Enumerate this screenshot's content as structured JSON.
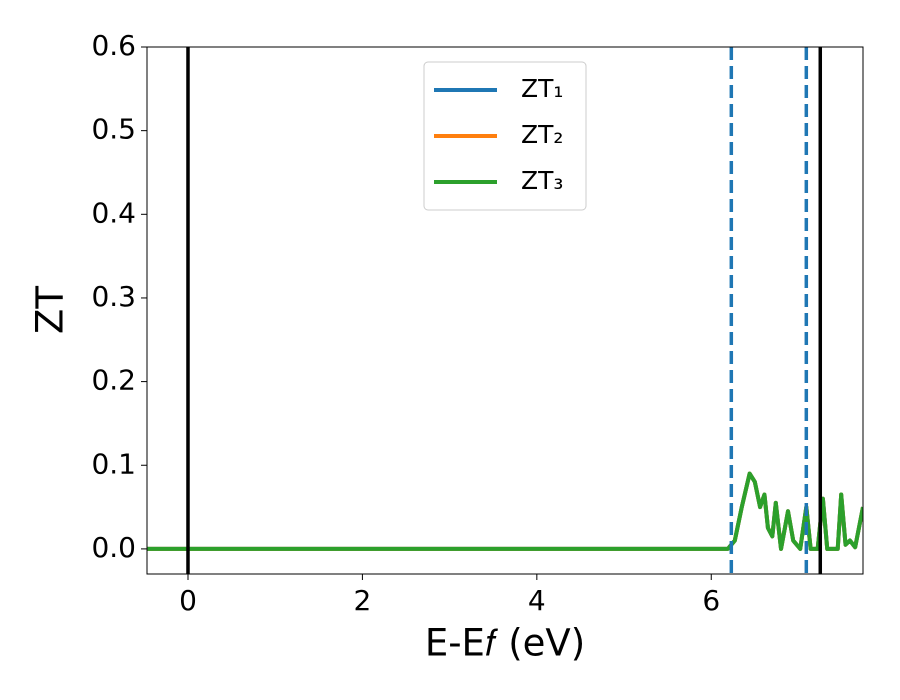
{
  "chart_data": {
    "type": "line",
    "xlabel": "E-E𝑓 (eV)",
    "ylabel": "ZT",
    "x": [
      -0.47,
      6.19,
      6.27,
      6.35,
      6.44,
      6.5,
      6.56,
      6.61,
      6.65,
      6.7,
      6.74,
      6.8,
      6.88,
      6.94,
      7.02,
      7.09,
      7.14,
      7.22,
      7.28,
      7.33,
      7.45,
      7.49,
      7.54,
      7.59,
      7.65,
      7.74
    ],
    "series": [
      {
        "name": "ZT₁",
        "color": "#1f77b4",
        "values": [
          0,
          0,
          0.01,
          0.05,
          0.09,
          0.08,
          0.05,
          0.065,
          0.025,
          0.015,
          0.055,
          0,
          0.045,
          0.01,
          0,
          0.05,
          0,
          0,
          0.06,
          0,
          0,
          0.065,
          0.005,
          0.01,
          0.002,
          0.05
        ]
      },
      {
        "name": "ZT₂",
        "color": "#ff7f0e",
        "values": [
          0,
          0,
          0.01,
          0.05,
          0.09,
          0.08,
          0.05,
          0.065,
          0.025,
          0.015,
          0.055,
          0,
          0.045,
          0.01,
          0,
          0.05,
          0,
          0,
          0.06,
          0,
          0,
          0.065,
          0.005,
          0.01,
          0.002,
          0.05
        ]
      },
      {
        "name": "ZT₃",
        "color": "#2ca02c",
        "values": [
          0,
          0,
          0.01,
          0.05,
          0.09,
          0.08,
          0.05,
          0.065,
          0.025,
          0.015,
          0.055,
          0,
          0.045,
          0.01,
          0,
          0.05,
          0,
          0,
          0.06,
          0,
          0,
          0.065,
          0.005,
          0.01,
          0.002,
          0.05
        ]
      }
    ],
    "vlines": [
      {
        "x": 0,
        "color": "#000000",
        "dashed": false
      },
      {
        "x": 7.25,
        "color": "#000000",
        "dashed": false
      },
      {
        "x": 6.23,
        "color": "#1f77b4",
        "dashed": true
      },
      {
        "x": 7.09,
        "color": "#1f77b4",
        "dashed": true
      }
    ],
    "xlim": [
      -0.47,
      7.74
    ],
    "ylim": [
      -0.03,
      0.6
    ],
    "xticks": [
      0,
      2,
      4,
      6
    ],
    "yticks": [
      {
        "value": 0,
        "label": "0.0"
      },
      0.1,
      0.2,
      0.3,
      0.4,
      0.5,
      0.6
    ],
    "legend": "upper center"
  }
}
